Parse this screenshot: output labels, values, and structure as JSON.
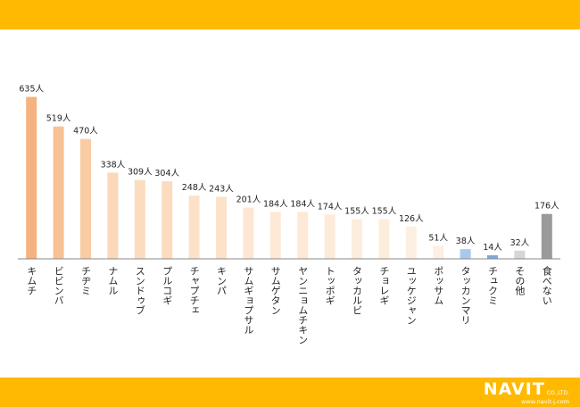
{
  "chart_data": {
    "type": "bar",
    "title": "",
    "xlabel": "",
    "ylabel": "",
    "ylim": [
      0,
      700
    ],
    "unit": "人",
    "grid": false,
    "legend": "none",
    "categories": [
      "キムチ",
      "ビビンバ",
      "チヂミ",
      "ナムル",
      "スンドゥブ",
      "プルコギ",
      "チャプチェ",
      "キンパ",
      "サムギョプサル",
      "サムゲタン",
      "ヤンニョムチキン",
      "トッポギ",
      "タッカルビ",
      "チョレギ",
      "ユッケジャン",
      "ポッサム",
      "タッカンマリ",
      "チュクミ",
      "その他",
      "食べない"
    ],
    "values": [
      635,
      519,
      470,
      338,
      309,
      304,
      248,
      243,
      201,
      184,
      184,
      174,
      155,
      155,
      126,
      51,
      38,
      14,
      32,
      176
    ],
    "value_labels": [
      "635人",
      "519人",
      "470人",
      "338人",
      "309人",
      "304人",
      "248人",
      "243人",
      "201人",
      "184人",
      "184人",
      "174人",
      "155人",
      "155人",
      "126人",
      "51人",
      "38人",
      "14人",
      "32人",
      "176人"
    ],
    "colors": [
      "#f6b27e",
      "#f8c294",
      "#f9cca3",
      "#fbd8b8",
      "#fbdcbf",
      "#fbdcbf",
      "#fce2c9",
      "#fce2c9",
      "#fde7d2",
      "#fde9d6",
      "#fde9d6",
      "#fdebd9",
      "#fdeddd",
      "#fdeddd",
      "#fdefe1",
      "#fdefe1",
      "#a9c8ee",
      "#7fa9dc",
      "#d6d6d6",
      "#9a9a9a"
    ]
  },
  "brand": {
    "name": "NAVIT",
    "suffix": "CO.,LTD.",
    "url": "www.navit-j.com",
    "band_color": "#ffb900"
  }
}
